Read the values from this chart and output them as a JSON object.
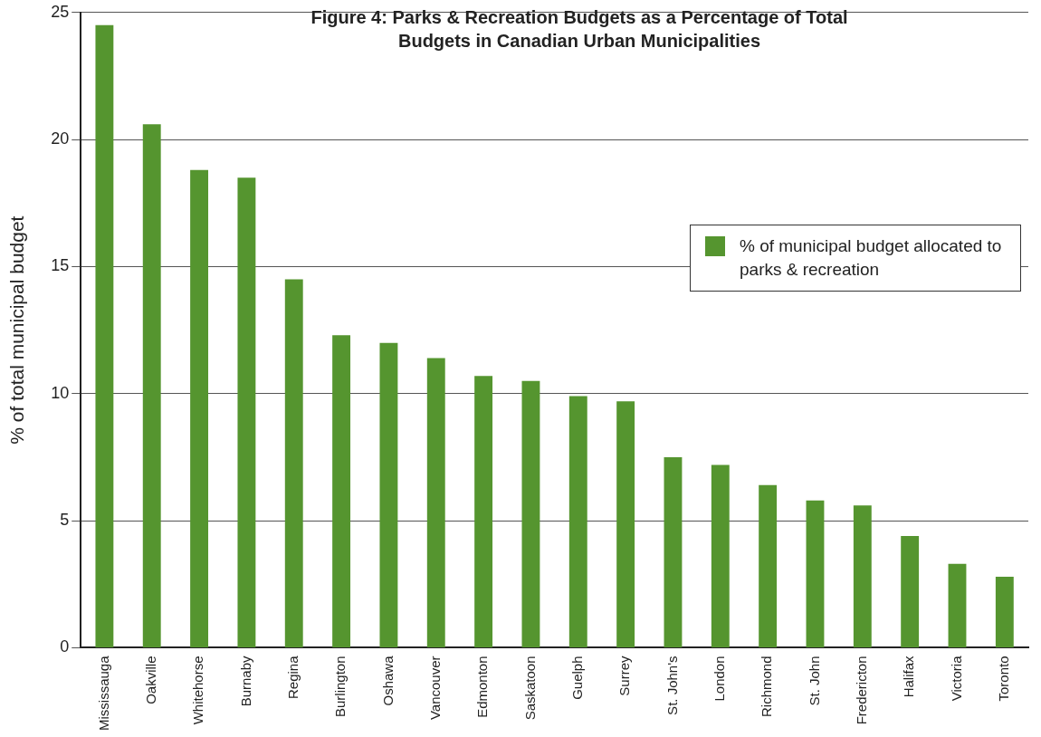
{
  "chart_data": {
    "type": "bar",
    "title": "Figure 4: Parks & Recreation Budgets as a Percentage of Total Budgets in Canadian Urban Municipalities",
    "ylabel": "% of total municipal budget",
    "categories": [
      "Mississauga",
      "Oakville",
      "Whitehorse",
      "Burnaby",
      "Regina",
      "Burlington",
      "Oshawa",
      "Vancouver",
      "Edmonton",
      "Saskatoon",
      "Guelph",
      "Surrey",
      "St. John's",
      "London",
      "Richmond",
      "St. John",
      "Fredericton",
      "Halifax",
      "Victoria",
      "Toronto"
    ],
    "series": [
      {
        "name": "% of municipal budget allocated to parks & recreation",
        "color": "#55952f",
        "values": [
          24.5,
          20.6,
          18.8,
          18.5,
          14.5,
          12.3,
          12.0,
          11.4,
          10.7,
          10.5,
          9.9,
          9.7,
          7.5,
          7.2,
          6.4,
          5.8,
          5.6,
          4.4,
          3.3,
          2.8
        ]
      }
    ],
    "ylim": [
      0,
      25
    ],
    "yticks": [
      0,
      5,
      10,
      15,
      20,
      25
    ],
    "grid": "y",
    "legend": "right"
  }
}
